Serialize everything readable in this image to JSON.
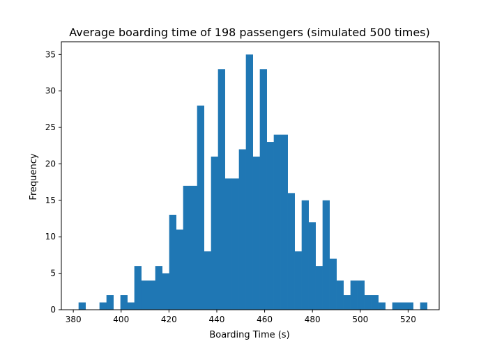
{
  "chart_data": {
    "type": "bar",
    "title": "Average boarding time of 198 passengers (simulated 500 times)",
    "xlabel": "Boarding Time (s)",
    "ylabel": "Frequency",
    "xlim": [
      375,
      533
    ],
    "ylim": [
      0,
      36.75
    ],
    "xticks": [
      380,
      400,
      420,
      440,
      460,
      480,
      500,
      520
    ],
    "yticks": [
      0,
      5,
      10,
      15,
      20,
      25,
      30,
      35
    ],
    "bin_start": 382.2,
    "bin_width": 2.915,
    "bar_color": "#1f77b4",
    "grid": false,
    "counts": [
      1,
      0,
      0,
      1,
      2,
      0,
      2,
      1,
      6,
      4,
      4,
      6,
      5,
      13,
      11,
      17,
      17,
      28,
      8,
      21,
      33,
      18,
      18,
      22,
      35,
      21,
      33,
      23,
      24,
      24,
      16,
      8,
      15,
      12,
      6,
      15,
      7,
      4,
      2,
      4,
      4,
      2,
      2,
      1,
      0,
      1,
      1,
      1,
      0,
      1
    ]
  }
}
